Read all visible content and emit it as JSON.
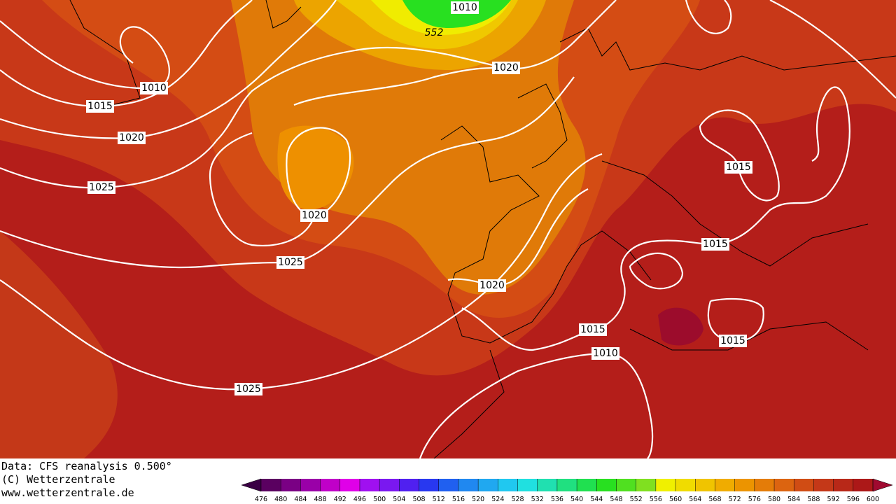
{
  "map": {
    "isobar_labels": [
      "1010",
      "1015",
      "1020",
      "1025",
      "1020",
      "1025",
      "1020",
      "1020",
      "1015",
      "1010",
      "1025",
      "1015",
      "1015",
      "1015",
      "1010",
      "552"
    ]
  },
  "footer": {
    "lines": [
      "Data: CFS reanalysis 0.500°",
      "(C) Wetterzentrale",
      "www.wetterzentrale.de"
    ]
  },
  "colorbar": {
    "levels": [
      476,
      480,
      484,
      488,
      492,
      496,
      500,
      504,
      508,
      512,
      516,
      520,
      524,
      528,
      532,
      536,
      540,
      544,
      548,
      552,
      556,
      560,
      564,
      568,
      572,
      576,
      580,
      584,
      588,
      592,
      596,
      600
    ],
    "colors": [
      "#3a0044",
      "#5a0060",
      "#7a0084",
      "#9a00a8",
      "#c000c8",
      "#e000e8",
      "#a010f0",
      "#7a18f0",
      "#5020f0",
      "#2838f0",
      "#2060f0",
      "#2088f0",
      "#20a8f0",
      "#20c8f0",
      "#20e0e0",
      "#20e0b0",
      "#20e080",
      "#20e050",
      "#28e020",
      "#50e020",
      "#80e020",
      "#f0f000",
      "#f0dc00",
      "#f0c400",
      "#f0ac00",
      "#ec9400",
      "#e47c08",
      "#dc6410",
      "#d04c14",
      "#c43818",
      "#b82818",
      "#ac1818",
      "#a00a30"
    ]
  }
}
